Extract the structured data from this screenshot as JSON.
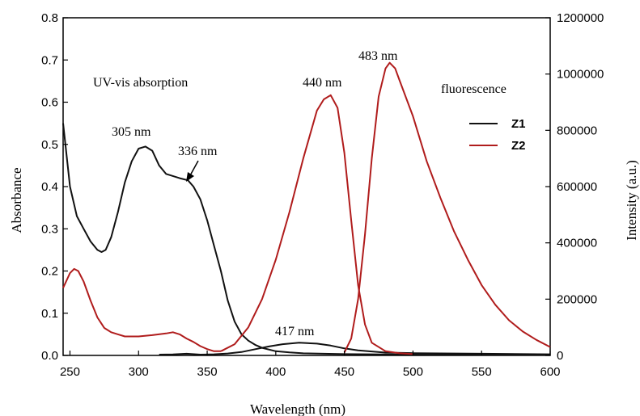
{
  "chart_data": {
    "type": "line",
    "xlabel": "Wavelength (nm)",
    "ylabel_left": "Absorbance",
    "ylabel_right": "Intensity (a.u.)",
    "xlim": [
      245,
      600
    ],
    "ylim_left": [
      0.0,
      0.8
    ],
    "ylim_right": [
      0,
      1200000
    ],
    "x_ticks": [
      "250",
      "300",
      "350",
      "400",
      "450",
      "500",
      "550",
      "600"
    ],
    "y_left_ticks": [
      "0.0",
      "0.1",
      "0.2",
      "0.3",
      "0.4",
      "0.5",
      "0.6",
      "0.7",
      "0.8"
    ],
    "y_right_ticks": [
      "0",
      "200000",
      "400000",
      "600000",
      "800000",
      "1000000",
      "1200000"
    ],
    "legend": {
      "title": "fluorescence",
      "entries": [
        {
          "label": "Z1",
          "color": "#111111"
        },
        {
          "label": "Z2",
          "color": "#b01c1c"
        }
      ]
    },
    "annotations": {
      "uv_label": "UV-vis absorption",
      "peak_305": "305 nm",
      "peak_336": "336 nm",
      "peak_417": "417 nm",
      "peak_440": "440 nm",
      "peak_483": "483 nm"
    },
    "series": [
      {
        "axis": "left",
        "color": "#111111",
        "x": [
          245,
          250,
          255,
          260,
          265,
          270,
          273,
          276,
          280,
          285,
          290,
          295,
          300,
          305,
          310,
          315,
          320,
          325,
          330,
          336,
          340,
          345,
          350,
          355,
          360,
          365,
          370,
          375,
          380,
          385,
          390,
          400,
          410,
          420,
          450,
          500,
          550,
          600
        ],
        "y": [
          0.55,
          0.4,
          0.33,
          0.3,
          0.27,
          0.25,
          0.245,
          0.25,
          0.28,
          0.34,
          0.41,
          0.46,
          0.49,
          0.495,
          0.485,
          0.45,
          0.43,
          0.425,
          0.42,
          0.415,
          0.4,
          0.37,
          0.32,
          0.26,
          0.2,
          0.13,
          0.08,
          0.05,
          0.035,
          0.025,
          0.018,
          0.01,
          0.007,
          0.005,
          0.003,
          0.002,
          0.001,
          0.001
        ]
      },
      {
        "axis": "right",
        "color": "#111111",
        "x": [
          315,
          325,
          335,
          345,
          355,
          365,
          375,
          385,
          395,
          405,
          417,
          430,
          440,
          450,
          460,
          480,
          500,
          550,
          600
        ],
        "y": [
          3000,
          3500,
          6000,
          3000,
          4000,
          7000,
          12000,
          22000,
          32000,
          40000,
          45000,
          42000,
          35000,
          25000,
          18000,
          10000,
          8000,
          6000,
          4000
        ]
      },
      {
        "axis": "left",
        "color": "#b01c1c",
        "x": [
          245,
          250,
          253,
          256,
          260,
          265,
          270,
          275,
          280,
          285,
          290,
          300,
          310,
          320,
          325,
          330,
          335,
          340,
          345,
          350,
          355,
          360
        ],
        "y": [
          0.16,
          0.195,
          0.205,
          0.2,
          0.175,
          0.13,
          0.09,
          0.065,
          0.055,
          0.05,
          0.045,
          0.045,
          0.048,
          0.052,
          0.055,
          0.05,
          0.04,
          0.032,
          0.022,
          0.015,
          0.01,
          0.01
        ]
      },
      {
        "axis": "right",
        "color": "#b01c1c",
        "x": [
          360,
          370,
          380,
          390,
          400,
          410,
          420,
          430,
          435,
          440,
          445,
          450,
          455,
          460,
          465,
          470,
          480,
          490,
          500
        ],
        "y": [
          15000,
          40000,
          100000,
          200000,
          340000,
          510000,
          700000,
          870000,
          910000,
          925000,
          880000,
          720000,
          480000,
          250000,
          110000,
          45000,
          15000,
          8000,
          5000
        ]
      },
      {
        "axis": "right",
        "color": "#b01c1c",
        "x": [
          450,
          455,
          460,
          465,
          470,
          475,
          480,
          483,
          487,
          490,
          500,
          510,
          520,
          530,
          540,
          550,
          560,
          570,
          580,
          590,
          600
        ],
        "y": [
          10000,
          60000,
          200000,
          430000,
          700000,
          920000,
          1020000,
          1040000,
          1020000,
          980000,
          850000,
          690000,
          560000,
          440000,
          340000,
          250000,
          180000,
          125000,
          85000,
          55000,
          30000
        ]
      }
    ]
  }
}
